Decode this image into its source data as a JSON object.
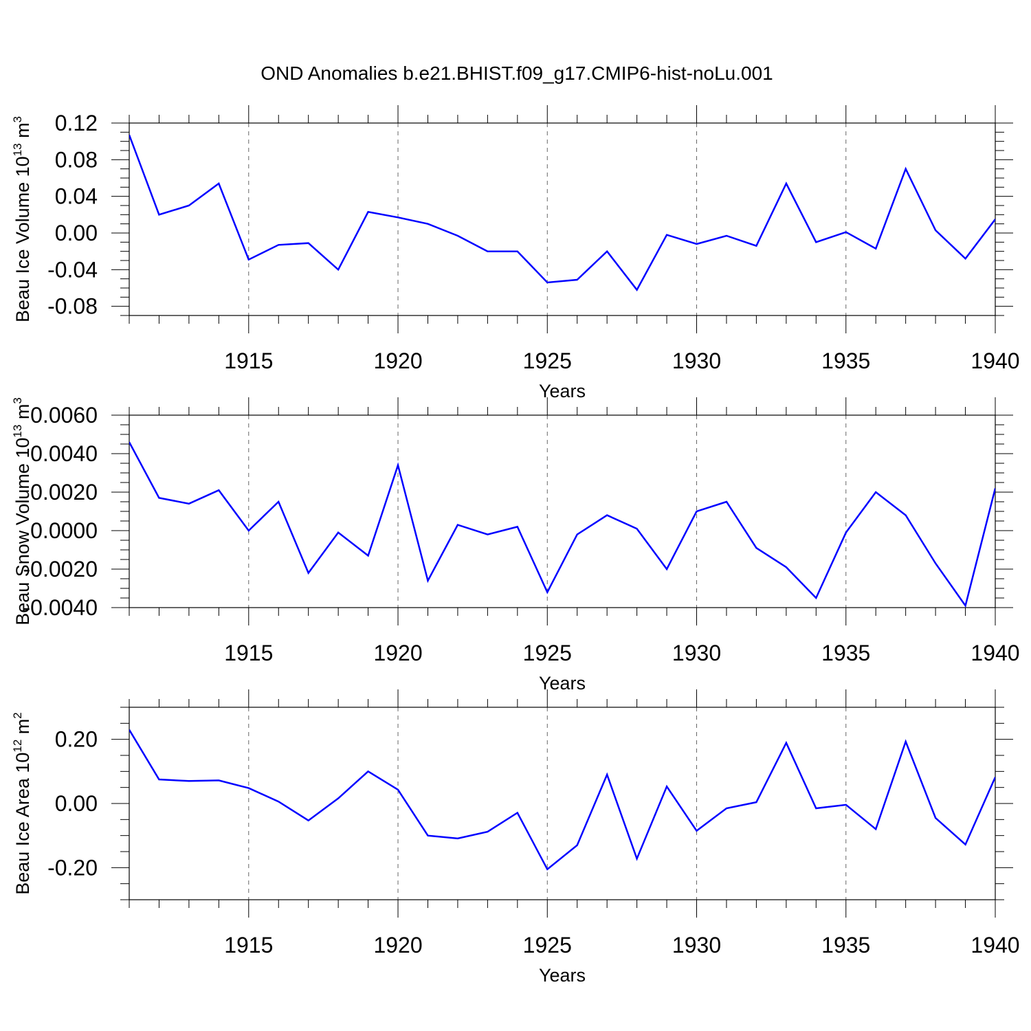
{
  "title": "OND Anomalies b.e21.BHIST.f09_g17.CMIP6-hist-noLu.001",
  "colors": {
    "line": "#0000ff",
    "axis": "#000000",
    "grid": "#666666"
  },
  "chart_data": [
    {
      "type": "line",
      "ylabel": {
        "text": "Beau Ice Volume 10",
        "sup1": "13",
        "unit": " m",
        "sup2": "3"
      },
      "xlabel": "Years",
      "xlim": [
        1911,
        1940
      ],
      "ylim": [
        -0.09,
        0.12
      ],
      "yticks": [
        0.12,
        0.08,
        0.04,
        0.0,
        -0.04,
        -0.08
      ],
      "ytick_labels": [
        "0.12",
        "0.08",
        "0.04",
        "0.00",
        "-0.04",
        "-0.08"
      ],
      "xticks": [
        1915,
        1920,
        1925,
        1930,
        1935,
        1940
      ],
      "xtick_labels": [
        "1915",
        "1920",
        "1925",
        "1930",
        "1935",
        "1940"
      ],
      "x": [
        1911,
        1912,
        1913,
        1914,
        1915,
        1916,
        1917,
        1918,
        1919,
        1920,
        1921,
        1922,
        1923,
        1924,
        1925,
        1926,
        1927,
        1928,
        1929,
        1930,
        1931,
        1932,
        1933,
        1934,
        1935,
        1936,
        1937,
        1938,
        1939,
        1940
      ],
      "values": [
        0.107,
        0.02,
        0.03,
        0.054,
        -0.029,
        -0.013,
        -0.011,
        -0.04,
        0.023,
        0.017,
        0.01,
        -0.003,
        -0.02,
        -0.02,
        -0.054,
        -0.051,
        -0.02,
        -0.062,
        -0.002,
        -0.012,
        -0.003,
        -0.014,
        0.054,
        -0.01,
        0.001,
        -0.017,
        0.07,
        0.003,
        -0.028,
        0.015
      ]
    },
    {
      "type": "line",
      "ylabel": {
        "text": "Beau Snow Volume 10",
        "sup1": "13",
        "unit": " m",
        "sup2": "3"
      },
      "xlabel": "Years",
      "xlim": [
        1911,
        1940
      ],
      "ylim": [
        -0.004,
        0.006
      ],
      "yticks": [
        0.006,
        0.004,
        0.002,
        0.0,
        -0.002,
        -0.004
      ],
      "ytick_labels": [
        "0.0060",
        "0.0040",
        "0.0020",
        "0.0000",
        "-0.0020",
        "-0.0040"
      ],
      "xticks": [
        1915,
        1920,
        1925,
        1930,
        1935,
        1940
      ],
      "xtick_labels": [
        "1915",
        "1920",
        "1925",
        "1930",
        "1935",
        "1940"
      ],
      "x": [
        1911,
        1912,
        1913,
        1914,
        1915,
        1916,
        1917,
        1918,
        1919,
        1920,
        1921,
        1922,
        1923,
        1924,
        1925,
        1926,
        1927,
        1928,
        1929,
        1930,
        1931,
        1932,
        1933,
        1934,
        1935,
        1936,
        1937,
        1938,
        1939,
        1940
      ],
      "values": [
        0.0046,
        0.0017,
        0.0014,
        0.0021,
        0.0,
        0.0015,
        -0.0022,
        -0.0001,
        -0.0013,
        0.0034,
        -0.0026,
        0.0003,
        -0.0002,
        0.0002,
        -0.0032,
        -0.0002,
        0.0008,
        0.0001,
        -0.002,
        0.001,
        0.0015,
        -0.0009,
        -0.0019,
        -0.0035,
        -0.0001,
        0.002,
        0.0008,
        -0.0017,
        -0.0039,
        0.0022
      ]
    },
    {
      "type": "line",
      "ylabel": {
        "text": "Beau Ice Area 10",
        "sup1": "12",
        "unit": " m",
        "sup2": "2"
      },
      "xlabel": "Years",
      "xlim": [
        1911,
        1940
      ],
      "ylim": [
        -0.3,
        0.3
      ],
      "yticks": [
        0.2,
        0.0,
        -0.2
      ],
      "ytick_labels": [
        "0.20",
        "0.00",
        "-0.20"
      ],
      "xticks": [
        1915,
        1920,
        1925,
        1930,
        1935,
        1940
      ],
      "xtick_labels": [
        "1915",
        "1920",
        "1925",
        "1930",
        "1935",
        "1940"
      ],
      "x": [
        1911,
        1912,
        1913,
        1914,
        1915,
        1916,
        1917,
        1918,
        1919,
        1920,
        1921,
        1922,
        1923,
        1924,
        1925,
        1926,
        1927,
        1928,
        1929,
        1930,
        1931,
        1932,
        1933,
        1934,
        1935,
        1936,
        1937,
        1938,
        1939,
        1940
      ],
      "values": [
        0.23,
        0.075,
        0.07,
        0.072,
        0.048,
        0.006,
        -0.053,
        0.016,
        0.1,
        0.043,
        -0.1,
        -0.109,
        -0.088,
        -0.029,
        -0.205,
        -0.13,
        0.09,
        -0.172,
        0.053,
        -0.085,
        -0.015,
        0.004,
        0.189,
        -0.015,
        -0.004,
        -0.08,
        0.193,
        -0.045,
        -0.128,
        0.082
      ]
    }
  ]
}
